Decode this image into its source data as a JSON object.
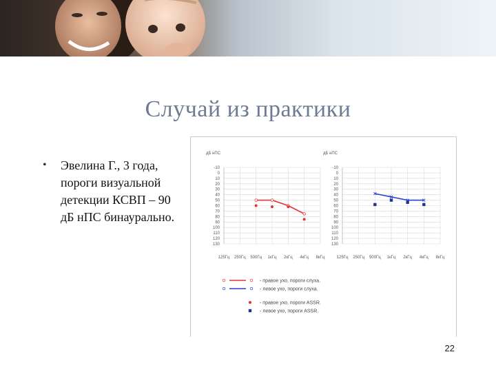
{
  "slide": {
    "title": "Случай из практики",
    "bullet": "Эвелина Г., 3 года, пороги визуальной детекции КСВП – 90 дБ нПС бинаурально.",
    "page_number": "22"
  },
  "header_photo": {
    "description_icon": "mother-and-baby-photo"
  },
  "chart_data": [
    {
      "type": "line",
      "unit_label": "дБ нПС",
      "y_ticks": [
        "-10",
        "0",
        "10",
        "20",
        "30",
        "40",
        "50",
        "60",
        "70",
        "80",
        "90",
        "100",
        "110",
        "120",
        "130"
      ],
      "x_ticks": [
        "125Гц",
        "250Гц",
        "500Гц",
        "1кГц",
        "2кГц",
        "4кГц",
        "8кГц"
      ],
      "ylim": [
        -10,
        130
      ],
      "series": [
        {
          "key": "right-hearing",
          "color": "#e53232",
          "x": [
            "500Гц",
            "1кГц",
            "2кГц",
            "4кГц"
          ],
          "values": [
            50,
            50,
            60,
            75
          ],
          "marker": "circle-open"
        },
        {
          "key": "right-assr",
          "color": "#e53232",
          "x": [
            "500Гц",
            "1кГц",
            "2кГц",
            "4кГц"
          ],
          "values": [
            60,
            62,
            62,
            85
          ],
          "marker": "dot"
        }
      ]
    },
    {
      "type": "line",
      "unit_label": "дБ нПС",
      "y_ticks": [
        "-10",
        "0",
        "10",
        "20",
        "30",
        "40",
        "50",
        "60",
        "70",
        "80",
        "90",
        "100",
        "110",
        "120",
        "130"
      ],
      "x_ticks": [
        "125Гц",
        "250Гц",
        "500Гц",
        "1кГц",
        "2кГц",
        "4кГц",
        "8кГц"
      ],
      "ylim": [
        -10,
        130
      ],
      "series": [
        {
          "key": "left-hearing",
          "color": "#2a3fd0",
          "x": [
            "500Гц",
            "1кГц",
            "2кГц",
            "4кГц"
          ],
          "values": [
            38,
            44,
            50,
            50
          ],
          "marker": "x"
        },
        {
          "key": "left-assr",
          "color": "#22338f",
          "x": [
            "500Гц",
            "1кГц",
            "2кГц",
            "4кГц"
          ],
          "values": [
            58,
            50,
            54,
            58
          ],
          "marker": "square"
        }
      ]
    }
  ],
  "legend": [
    {
      "text": "- правое ухо, пороги слуха.",
      "color": "#e53232",
      "kind": "line"
    },
    {
      "text": "- левое ухо, пороги слуха.",
      "color": "#2a3fd0",
      "kind": "line"
    },
    {
      "text": "- правое ухо, пороги ASSR.",
      "color": "#e53232",
      "kind": "dot"
    },
    {
      "text": "- левое ухо, пороги ASSR.",
      "color": "#22338f",
      "kind": "square"
    }
  ]
}
